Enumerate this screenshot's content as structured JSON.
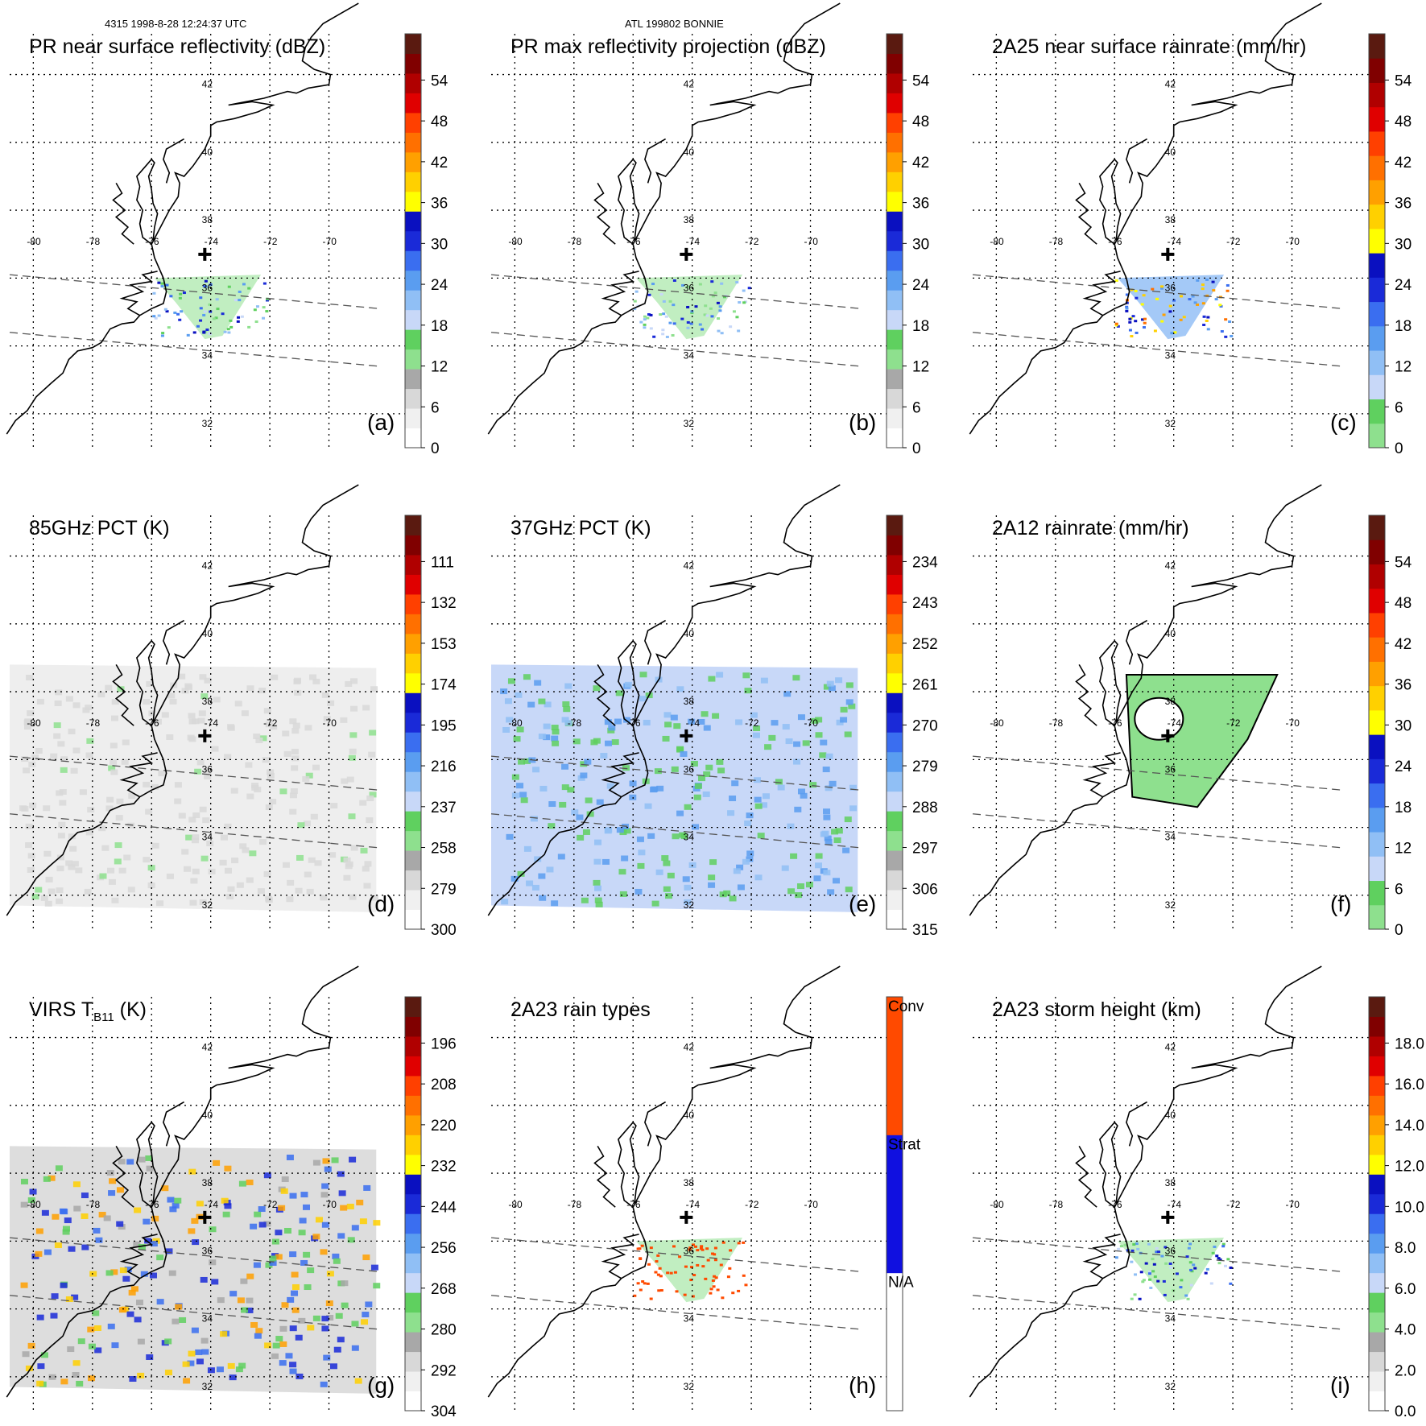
{
  "header": {
    "left": "4315 1998-8-28 12:24:37 UTC",
    "center": "ATL 199802 BONNIE"
  },
  "longitude_labels": [
    "-80",
    "-78",
    "-76",
    "-74",
    "-72",
    "-70"
  ],
  "latitude_labels": [
    "42",
    "40",
    "38",
    "36",
    "34",
    "32"
  ],
  "panels": [
    {
      "id": "a",
      "title": "PR near surface reflectivity (dBZ)",
      "letter": "(a)",
      "colorbar_ticks": [
        "0",
        "6",
        "12",
        "18",
        "24",
        "30",
        "36",
        "42",
        "48",
        "54"
      ],
      "colorbar_colors": [
        "#ffffff",
        "#f0f0f0",
        "#d8d8d8",
        "#a8a8a8",
        "#8ee08e",
        "#5fd05f",
        "#c8d8f8",
        "#90bff5",
        "#5a9df0",
        "#3a6ef0",
        "#1a2ad8",
        "#0a10c0",
        "#ffff00",
        "#ffd000",
        "#ffa000",
        "#ff7000",
        "#ff4000",
        "#e00000",
        "#b00000",
        "#800000",
        "#5a1a10"
      ],
      "swath": "pr"
    },
    {
      "id": "b",
      "title": "PR max reflectivity projection (dBZ)",
      "letter": "(b)",
      "colorbar_ticks": [
        "0",
        "6",
        "12",
        "18",
        "24",
        "30",
        "36",
        "42",
        "48",
        "54"
      ],
      "colorbar_colors": [
        "#ffffff",
        "#f0f0f0",
        "#d8d8d8",
        "#a8a8a8",
        "#8ee08e",
        "#5fd05f",
        "#c8d8f8",
        "#90bff5",
        "#5a9df0",
        "#3a6ef0",
        "#1a2ad8",
        "#0a10c0",
        "#ffff00",
        "#ffd000",
        "#ffa000",
        "#ff7000",
        "#ff4000",
        "#e00000",
        "#b00000",
        "#800000",
        "#5a1a10"
      ],
      "swath": "pr"
    },
    {
      "id": "c",
      "title": "2A25 near surface rainrate (mm/hr)",
      "letter": "(c)",
      "colorbar_ticks": [
        "0",
        "6",
        "12",
        "18",
        "24",
        "30",
        "36",
        "42",
        "48",
        "54"
      ],
      "colorbar_colors": [
        "#8ee08e",
        "#5fd05f",
        "#c8d8f8",
        "#90bff5",
        "#5a9df0",
        "#3a6ef0",
        "#1a2ad8",
        "#0a10c0",
        "#ffff00",
        "#ffd000",
        "#ffa000",
        "#ff7000",
        "#ff4000",
        "#e00000",
        "#b00000",
        "#800000",
        "#5a1a10"
      ],
      "swath": "pr"
    },
    {
      "id": "d",
      "title": "85GHz PCT (K)",
      "letter": "(d)",
      "colorbar_ticks": [
        "300",
        "279",
        "258",
        "237",
        "216",
        "195",
        "174",
        "153",
        "132",
        "111"
      ],
      "colorbar_colors": [
        "#ffffff",
        "#f0f0f0",
        "#d8d8d8",
        "#a8a8a8",
        "#8ee08e",
        "#5fd05f",
        "#c8d8f8",
        "#90bff5",
        "#5a9df0",
        "#3a6ef0",
        "#1a2ad8",
        "#0a10c0",
        "#ffff00",
        "#ffd000",
        "#ffa000",
        "#ff7000",
        "#ff4000",
        "#e00000",
        "#b00000",
        "#800000",
        "#5a1a10"
      ],
      "swath": "tmi"
    },
    {
      "id": "e",
      "title": "37GHz PCT (K)",
      "letter": "(e)",
      "colorbar_ticks": [
        "315",
        "306",
        "297",
        "288",
        "279",
        "270",
        "261",
        "252",
        "243",
        "234"
      ],
      "colorbar_colors": [
        "#ffffff",
        "#f0f0f0",
        "#d8d8d8",
        "#a8a8a8",
        "#8ee08e",
        "#5fd05f",
        "#c8d8f8",
        "#90bff5",
        "#5a9df0",
        "#3a6ef0",
        "#1a2ad8",
        "#0a10c0",
        "#ffff00",
        "#ffd000",
        "#ffa000",
        "#ff7000",
        "#ff4000",
        "#e00000",
        "#b00000",
        "#800000",
        "#5a1a10"
      ],
      "swath": "tmi"
    },
    {
      "id": "f",
      "title": "2A12 rainrate (mm/hr)",
      "letter": "(f)",
      "colorbar_ticks": [
        "0",
        "6",
        "12",
        "18",
        "24",
        "30",
        "36",
        "42",
        "48",
        "54"
      ],
      "colorbar_colors": [
        "#8ee08e",
        "#5fd05f",
        "#c8d8f8",
        "#90bff5",
        "#5a9df0",
        "#3a6ef0",
        "#1a2ad8",
        "#0a10c0",
        "#ffff00",
        "#ffd000",
        "#ffa000",
        "#ff7000",
        "#ff4000",
        "#e00000",
        "#b00000",
        "#800000",
        "#5a1a10"
      ],
      "swath": "tmi_rain"
    },
    {
      "id": "g",
      "title_main": "VIRS T",
      "title_sub": "B11",
      "title_unit": " (K)",
      "letter": "(g)",
      "colorbar_ticks": [
        "304",
        "292",
        "280",
        "268",
        "256",
        "244",
        "232",
        "220",
        "208",
        "196"
      ],
      "colorbar_colors": [
        "#ffffff",
        "#f0f0f0",
        "#d8d8d8",
        "#a8a8a8",
        "#8ee08e",
        "#5fd05f",
        "#c8d8f8",
        "#90bff5",
        "#5a9df0",
        "#3a6ef0",
        "#1a2ad8",
        "#0a10c0",
        "#ffff00",
        "#ffd000",
        "#ffa000",
        "#ff7000",
        "#ff4000",
        "#e00000",
        "#b00000",
        "#800000",
        "#5a1a10"
      ],
      "swath": "virs"
    },
    {
      "id": "h",
      "title": "2A23 rain types",
      "letter": "(h)",
      "colorbar_categories": [
        "N/A",
        "Strat",
        "Conv"
      ],
      "colorbar_colors": [
        "#ffffff",
        "#1010e0",
        "#ff4a00"
      ],
      "swath": "pr"
    },
    {
      "id": "i",
      "title": "2A23 storm height (km)",
      "letter": "(i)",
      "colorbar_ticks": [
        "0.0",
        "2.0",
        "4.0",
        "6.0",
        "8.0",
        "10.0",
        "12.0",
        "14.0",
        "16.0",
        "18.0"
      ],
      "colorbar_colors": [
        "#ffffff",
        "#f0f0f0",
        "#d8d8d8",
        "#a8a8a8",
        "#8ee08e",
        "#5fd05f",
        "#c8d8f8",
        "#90bff5",
        "#5a9df0",
        "#3a6ef0",
        "#1a2ad8",
        "#0a10c0",
        "#ffff00",
        "#ffd000",
        "#ffa000",
        "#ff7000",
        "#ff4000",
        "#e00000",
        "#b00000",
        "#800000",
        "#5a1a10"
      ],
      "swath": "pr"
    }
  ],
  "map": {
    "storm_center": {
      "lon": -74.2,
      "lat": 36.7
    },
    "coast_color": "#000000",
    "grid_color": "#000000"
  }
}
